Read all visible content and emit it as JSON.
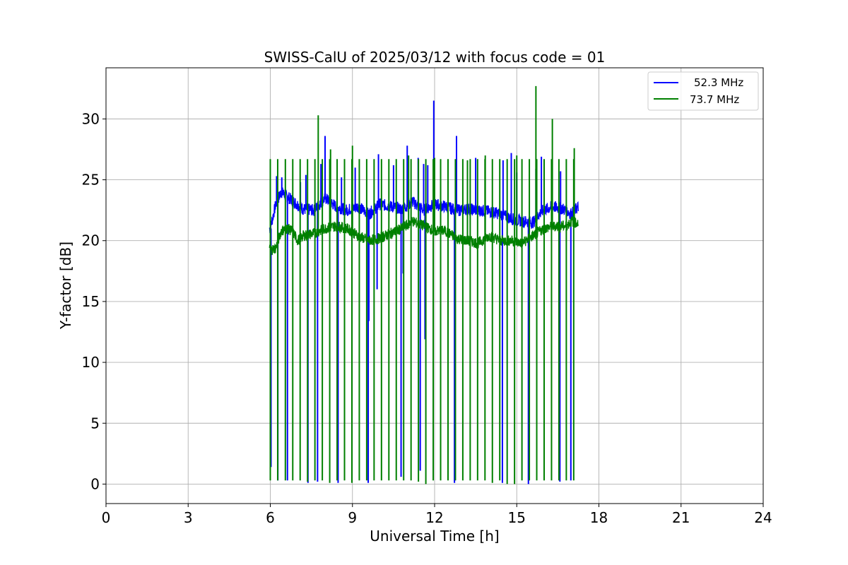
{
  "chart_data": {
    "type": "line",
    "title": "SWISS-CalU of 2025/03/12 with focus code = 01",
    "xlabel": "Universal Time [h]",
    "ylabel": "Y-factor [dB]",
    "xlim": [
      0,
      24
    ],
    "ylim": [
      -1.6,
      34.2
    ],
    "xticks": [
      0,
      3,
      6,
      9,
      12,
      15,
      18,
      21,
      24
    ],
    "yticks": [
      0,
      5,
      10,
      15,
      20,
      25,
      30
    ],
    "grid": true,
    "legend_position": "top-right",
    "x_tick_labels": [
      "0",
      "3",
      "6",
      "9",
      "12",
      "15",
      "18",
      "21",
      "24"
    ],
    "y_tick_labels": [
      "0",
      "5",
      "10",
      "15",
      "20",
      "25",
      "30"
    ],
    "series": [
      {
        "name": "52.3 MHz",
        "color": "#0000ff",
        "data_start_h": 5.97,
        "data_end_h": 17.25,
        "baseline": [
          [
            6.0,
            21.0
          ],
          [
            6.2,
            23.0
          ],
          [
            6.4,
            24.0
          ],
          [
            6.8,
            23.3
          ],
          [
            7.2,
            22.6
          ],
          [
            7.6,
            22.5
          ],
          [
            8.0,
            23.5
          ],
          [
            8.4,
            22.8
          ],
          [
            8.8,
            22.5
          ],
          [
            9.2,
            22.8
          ],
          [
            9.6,
            22.2
          ],
          [
            10.0,
            23.0
          ],
          [
            10.4,
            22.8
          ],
          [
            10.8,
            22.6
          ],
          [
            11.2,
            23.2
          ],
          [
            11.6,
            22.5
          ],
          [
            12.0,
            23.0
          ],
          [
            12.4,
            22.8
          ],
          [
            12.8,
            22.5
          ],
          [
            13.2,
            22.6
          ],
          [
            13.6,
            22.5
          ],
          [
            14.0,
            22.4
          ],
          [
            14.4,
            22.2
          ],
          [
            14.8,
            21.8
          ],
          [
            15.2,
            21.6
          ],
          [
            15.6,
            21.5
          ],
          [
            15.9,
            22.4
          ],
          [
            16.3,
            22.8
          ],
          [
            16.7,
            22.6
          ],
          [
            17.0,
            22.2
          ],
          [
            17.25,
            22.8
          ]
        ],
        "spikes": [
          [
            6.23,
            25.3
          ],
          [
            6.42,
            25.2
          ],
          [
            7.1,
            24.8
          ],
          [
            7.3,
            25.4
          ],
          [
            7.85,
            26.3
          ],
          [
            8.0,
            28.6
          ],
          [
            8.6,
            25.2
          ],
          [
            9.1,
            26.0
          ],
          [
            9.95,
            27.1
          ],
          [
            10.5,
            26.2
          ],
          [
            11.0,
            27.8
          ],
          [
            11.4,
            26.8
          ],
          [
            11.6,
            26.3
          ],
          [
            11.75,
            26.2
          ],
          [
            11.97,
            31.5
          ],
          [
            12.8,
            28.6
          ],
          [
            13.5,
            26.8
          ],
          [
            14.5,
            26.6
          ],
          [
            14.8,
            27.2
          ],
          [
            15.0,
            25.6
          ],
          [
            15.7,
            25.9
          ],
          [
            15.9,
            26.9
          ],
          [
            16.0,
            26.4
          ],
          [
            16.6,
            25.7
          ]
        ],
        "dips": [
          [
            9.6,
            13.4
          ],
          [
            9.9,
            16.0
          ],
          [
            10.85,
            17.3
          ],
          [
            11.65,
            11.9
          ]
        ],
        "calibration_drops": [
          [
            6.0,
            1.4
          ],
          [
            6.25,
            0.3
          ],
          [
            6.6,
            0.3
          ],
          [
            7.35,
            0.1
          ],
          [
            7.7,
            0.2
          ],
          [
            8.45,
            0.1
          ],
          [
            9.55,
            0.1
          ],
          [
            10.75,
            0.6
          ],
          [
            11.45,
            1.1
          ],
          [
            12.7,
            0.1
          ],
          [
            14.45,
            0.1
          ],
          [
            15.4,
            0.0
          ],
          [
            16.55,
            0.2
          ],
          [
            16.95,
            0.3
          ]
        ]
      },
      {
        "name": "73.7 MHz",
        "color": "#008000",
        "data_start_h": 5.97,
        "data_end_h": 17.25,
        "baseline": [
          [
            6.0,
            19.2
          ],
          [
            6.2,
            19.4
          ],
          [
            6.4,
            20.8
          ],
          [
            6.6,
            21.0
          ],
          [
            6.8,
            20.8
          ],
          [
            7.0,
            20.0
          ],
          [
            7.2,
            20.4
          ],
          [
            7.6,
            20.6
          ],
          [
            8.0,
            21.0
          ],
          [
            8.4,
            21.2
          ],
          [
            8.8,
            21.0
          ],
          [
            9.2,
            20.4
          ],
          [
            9.6,
            20.0
          ],
          [
            10.0,
            20.2
          ],
          [
            10.4,
            20.6
          ],
          [
            10.8,
            21.0
          ],
          [
            11.2,
            21.6
          ],
          [
            11.6,
            21.2
          ],
          [
            12.0,
            20.8
          ],
          [
            12.4,
            20.8
          ],
          [
            12.8,
            20.2
          ],
          [
            13.2,
            20.0
          ],
          [
            13.6,
            19.8
          ],
          [
            14.0,
            20.4
          ],
          [
            14.4,
            20.0
          ],
          [
            14.8,
            20.0
          ],
          [
            15.2,
            19.8
          ],
          [
            15.6,
            20.4
          ],
          [
            16.0,
            21.0
          ],
          [
            16.4,
            21.2
          ],
          [
            16.8,
            21.2
          ],
          [
            17.0,
            21.6
          ],
          [
            17.25,
            21.4
          ]
        ],
        "spike_top": 26.7,
        "spike_times": [
          6.0,
          6.27,
          6.55,
          6.82,
          7.09,
          7.36,
          7.63,
          7.9,
          8.17,
          8.44,
          8.71,
          8.98,
          9.25,
          9.52,
          9.79,
          10.06,
          10.33,
          10.6,
          10.87,
          11.14,
          11.41,
          11.68,
          11.95,
          12.22,
          12.49,
          12.76,
          13.03,
          13.3,
          13.57,
          13.84,
          14.11,
          14.38,
          14.65,
          14.92,
          15.19,
          15.46,
          15.73,
          16.0,
          16.27,
          16.54,
          16.81,
          17.08
        ],
        "spike_bottoms": [
          0.3,
          0.3,
          0.3,
          0.3,
          0.3,
          0.2,
          0.3,
          0.3,
          0.1,
          0.3,
          0.3,
          0.1,
          0.3,
          0.3,
          0.3,
          0.3,
          0.3,
          0.3,
          0.3,
          0.3,
          0.2,
          0.0,
          0.3,
          0.3,
          0.3,
          0.3,
          0.3,
          0.3,
          0.3,
          0.3,
          0.1,
          0.3,
          0.0,
          0.0,
          0.3,
          0.3,
          0.3,
          0.3,
          0.3,
          0.3,
          0.3,
          0.3
        ],
        "extra_peaks": [
          [
            7.75,
            30.3
          ],
          [
            8.2,
            27.5
          ],
          [
            9.0,
            27.8
          ],
          [
            11.05,
            27.0
          ],
          [
            12.0,
            26.8
          ],
          [
            13.2,
            26.6
          ],
          [
            13.85,
            27.0
          ],
          [
            15.0,
            27.0
          ],
          [
            15.7,
            32.7
          ],
          [
            16.3,
            30.0
          ],
          [
            17.1,
            27.6
          ]
        ]
      }
    ]
  }
}
